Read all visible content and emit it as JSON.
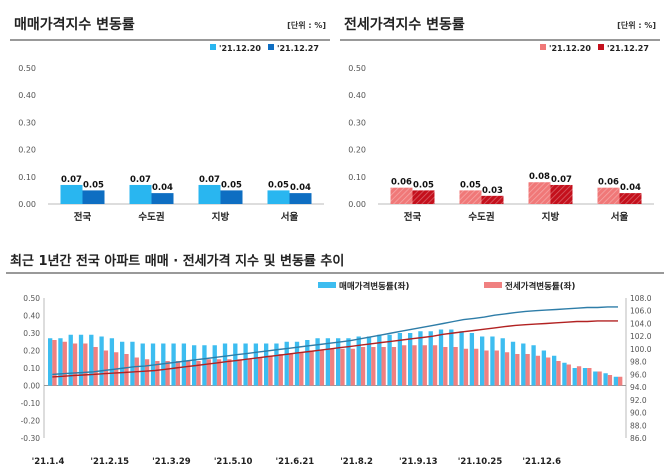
{
  "charts": {
    "sale": {
      "title": "매매가격지수 변동률",
      "unit": "[단위 : %]"
    },
    "jeonse": {
      "title": "전세가격지수 변동률",
      "unit": "[단위 : %]"
    },
    "trend": {
      "title": "최근 1년간 전국 아파트 매매 · 전세가격 지수 및 변동률 추이"
    }
  },
  "colors": {
    "sale_prev": "#29B6F0",
    "sale_curr": "#0E6EC2",
    "jeonse_prev": "#F07878",
    "jeonse_curr": "#C4101C",
    "sale_line": "#2E7DA8",
    "jeonse_line": "#B22222",
    "trend_sale_bar": "#3DBDF0",
    "trend_jeonse_bar": "#F08080"
  },
  "chart_data": [
    {
      "type": "bar",
      "categories": [
        "전국",
        "수도권",
        "지방",
        "서울"
      ],
      "series": [
        {
          "name": "'21.12.20",
          "values": [
            0.07,
            0.07,
            0.07,
            0.05
          ]
        },
        {
          "name": "'21.12.27",
          "values": [
            0.05,
            0.04,
            0.05,
            0.04
          ]
        }
      ],
      "ylim": [
        0.0,
        0.5
      ],
      "yticks": [
        "0.00",
        "0.10",
        "0.20",
        "0.30",
        "0.40",
        "0.50"
      ],
      "labels": [
        [
          "0.07",
          "0.07",
          "0.07",
          "0.05"
        ],
        [
          "0.05",
          "0.04",
          "0.05",
          "0.04"
        ]
      ],
      "legend": "top-right",
      "grid": false
    },
    {
      "type": "bar",
      "categories": [
        "전국",
        "수도권",
        "지방",
        "서울"
      ],
      "series": [
        {
          "name": "'21.12.20",
          "values": [
            0.06,
            0.05,
            0.08,
            0.06
          ]
        },
        {
          "name": "'21.12.27",
          "values": [
            0.05,
            0.03,
            0.07,
            0.04
          ]
        }
      ],
      "ylim": [
        0.0,
        0.5
      ],
      "yticks": [
        "0.00",
        "0.10",
        "0.20",
        "0.30",
        "0.40",
        "0.50"
      ],
      "labels": [
        [
          "0.06",
          "0.05",
          "0.08",
          "0.06"
        ],
        [
          "0.05",
          "0.03",
          "0.07",
          "0.04"
        ]
      ],
      "legend": "top-right",
      "grid": false
    },
    {
      "type": "bar",
      "x_labels": [
        "'21.1.4",
        "'21.2.15",
        "'21.3.29",
        "'21.5.10",
        "'21.6.21",
        "'21.8.2",
        "'21.9.13",
        "'21.10.25",
        "'21.12.6"
      ],
      "series": [
        {
          "name": "매매가격변동률(좌)",
          "values": [
            0.27,
            0.27,
            0.29,
            0.29,
            0.29,
            0.28,
            0.27,
            0.25,
            0.25,
            0.24,
            0.24,
            0.24,
            0.24,
            0.24,
            0.23,
            0.23,
            0.23,
            0.24,
            0.24,
            0.24,
            0.24,
            0.24,
            0.24,
            0.25,
            0.25,
            0.26,
            0.27,
            0.27,
            0.27,
            0.27,
            0.28,
            0.28,
            0.29,
            0.29,
            0.3,
            0.3,
            0.31,
            0.31,
            0.32,
            0.32,
            0.31,
            0.3,
            0.28,
            0.28,
            0.27,
            0.25,
            0.24,
            0.23,
            0.2,
            0.17,
            0.13,
            0.1,
            0.1,
            0.08,
            0.07,
            0.05
          ]
        },
        {
          "name": "전세가격변동률(좌)",
          "values": [
            0.26,
            0.25,
            0.24,
            0.24,
            0.22,
            0.2,
            0.19,
            0.18,
            0.16,
            0.15,
            0.14,
            0.14,
            0.14,
            0.14,
            0.14,
            0.15,
            0.15,
            0.15,
            0.15,
            0.15,
            0.16,
            0.17,
            0.18,
            0.18,
            0.19,
            0.2,
            0.2,
            0.21,
            0.21,
            0.21,
            0.22,
            0.22,
            0.22,
            0.22,
            0.23,
            0.23,
            0.23,
            0.23,
            0.22,
            0.22,
            0.21,
            0.21,
            0.2,
            0.2,
            0.19,
            0.18,
            0.18,
            0.17,
            0.16,
            0.14,
            0.12,
            0.11,
            0.1,
            0.08,
            0.06,
            0.05
          ]
        },
        {
          "name": "매매가격지수(우)",
          "axis": "right",
          "values": [
            96.0,
            96.1,
            96.2,
            96.3,
            96.4,
            96.6,
            96.8,
            97.0,
            97.2,
            97.3,
            97.5,
            97.7,
            97.9,
            98.1,
            98.3,
            98.5,
            98.7,
            98.9,
            99.1,
            99.3,
            99.5,
            99.7,
            99.9,
            100.1,
            100.3,
            100.5,
            100.7,
            100.9,
            101.1,
            101.3,
            101.6,
            101.9,
            102.2,
            102.5,
            102.8,
            103.1,
            103.4,
            103.7,
            104.0,
            104.3,
            104.6,
            104.8,
            105.0,
            105.3,
            105.5,
            105.7,
            105.9,
            106.0,
            106.1,
            106.2,
            106.3,
            106.4,
            106.5,
            106.5,
            106.6,
            106.6
          ]
        },
        {
          "name": "전세가격지수(우)",
          "axis": "right",
          "values": [
            95.6,
            95.7,
            95.8,
            95.9,
            96.0,
            96.1,
            96.2,
            96.3,
            96.4,
            96.5,
            96.6,
            96.8,
            97.0,
            97.2,
            97.4,
            97.6,
            97.8,
            98.0,
            98.2,
            98.4,
            98.6,
            98.8,
            99.0,
            99.2,
            99.4,
            99.6,
            99.8,
            100.0,
            100.2,
            100.4,
            100.6,
            100.8,
            101.0,
            101.2,
            101.4,
            101.6,
            101.8,
            102.0,
            102.3,
            102.5,
            102.7,
            102.9,
            103.1,
            103.3,
            103.5,
            103.7,
            103.8,
            103.9,
            104.0,
            104.1,
            104.2,
            104.3,
            104.3,
            104.4,
            104.4,
            104.4
          ]
        }
      ],
      "yticks_left": [
        "0.50",
        "0.40",
        "0.30",
        "0.20",
        "0.10",
        "0.00",
        "-0.10",
        "-0.20",
        "-0.30"
      ],
      "ylim_left": [
        -0.3,
        0.5
      ],
      "yticks_right": [
        "108.0",
        "106.0",
        "104.0",
        "102.0",
        "100.0",
        "98.0",
        "96.0",
        "94.0",
        "92.0",
        "90.0",
        "88.0",
        "86.0"
      ],
      "ylim_right": [
        86.0,
        108.0
      ],
      "legend": "top-center",
      "grid": false
    }
  ]
}
